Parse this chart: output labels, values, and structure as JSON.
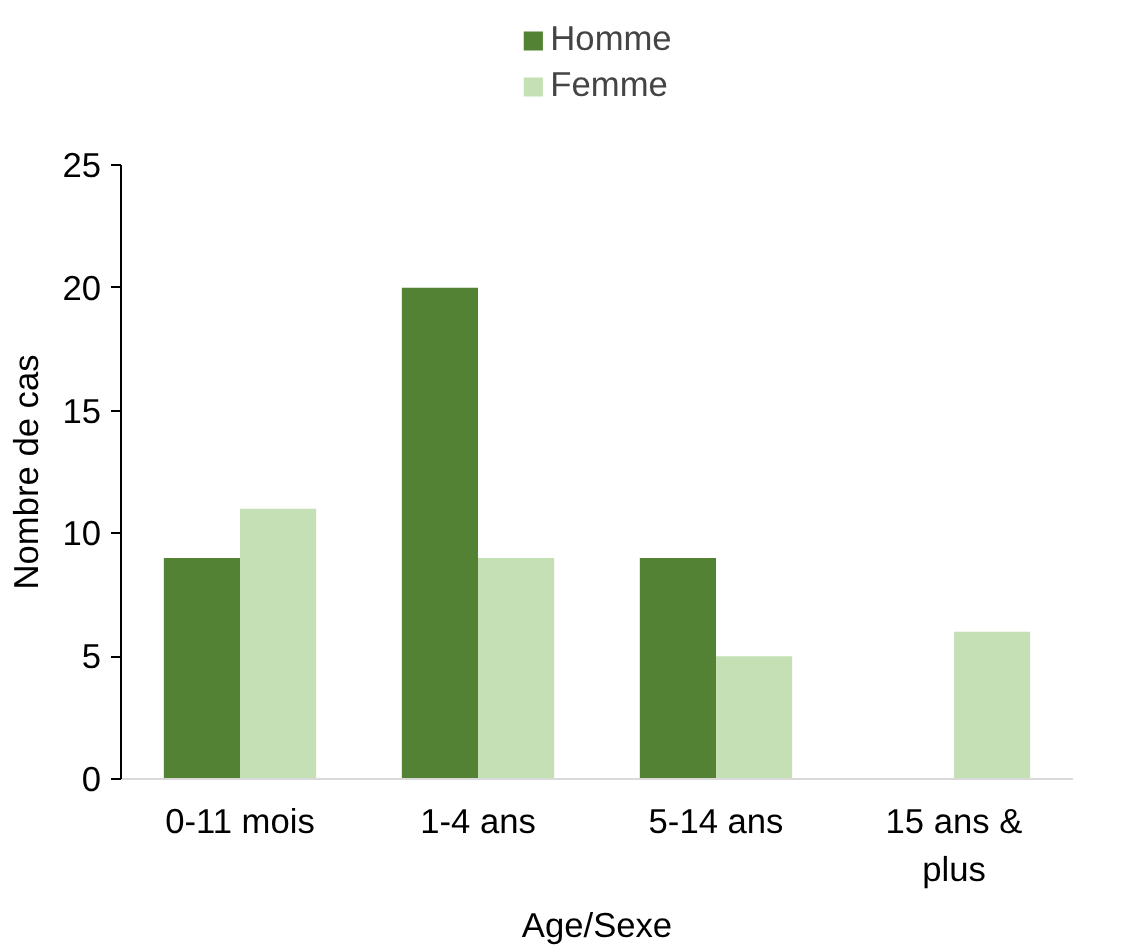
{
  "chart_data": {
    "type": "bar",
    "xlabel": "Age/Sexe",
    "ylabel": "Nombre de cas",
    "categories": [
      "0-11 mois",
      "1-4 ans",
      "5-14 ans",
      "15 ans & plus"
    ],
    "series": [
      {
        "name": "Homme",
        "color": "#548235",
        "values": [
          9,
          20,
          9,
          0
        ]
      },
      {
        "name": "Femme",
        "color": "#c5e0b4",
        "values": [
          11,
          9,
          5,
          6
        ]
      }
    ],
    "ylim": [
      0,
      25
    ],
    "yticks": [
      0,
      5,
      10,
      15,
      20,
      25
    ],
    "grid": false,
    "legend": "top"
  }
}
